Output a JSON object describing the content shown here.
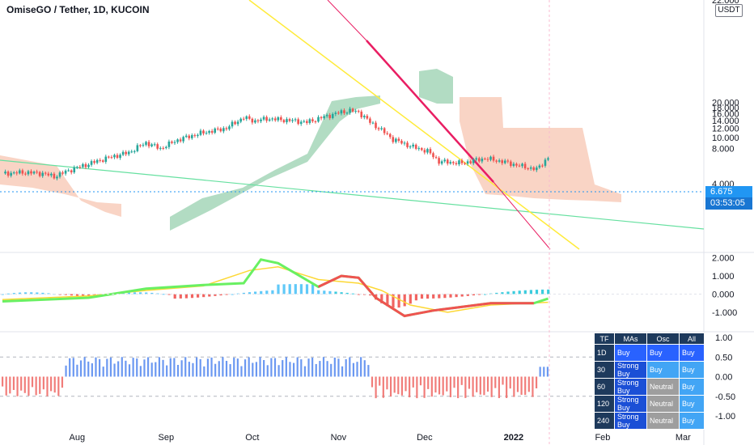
{
  "header": {
    "title": "OmiseGO / Tether, 1D, KUCOIN"
  },
  "price_axis": {
    "unit": "USDT",
    "top_label": "22.000",
    "ticks": [
      "20.000",
      "18.000",
      "16.000",
      "14.000",
      "12.000",
      "10.000",
      "8.000",
      "4.000"
    ],
    "last_price": "6.675",
    "countdown": "03:53:05"
  },
  "osc_axis": {
    "ticks": [
      "2.000",
      "1.000",
      "0.000",
      "-1.000"
    ]
  },
  "third_axis": {
    "ticks": [
      "1.00",
      "0.50",
      "0.00",
      "-0.50",
      "-1.00"
    ]
  },
  "time_axis": {
    "labels": [
      "Aug",
      "Sep",
      "Oct",
      "Nov",
      "Dec",
      "2022",
      "Feb",
      "Mar"
    ]
  },
  "signal_table": {
    "headers": [
      "TF",
      "MAs",
      "Osc",
      "All"
    ],
    "rows": [
      {
        "tf": "1D",
        "mas": "Buy",
        "osc": "Buy",
        "all": "Buy"
      },
      {
        "tf": "30",
        "mas": "Strong Buy",
        "osc": "Buy",
        "all": "Buy"
      },
      {
        "tf": "60",
        "mas": "Strong Buy",
        "osc": "Neutral",
        "all": "Buy"
      },
      {
        "tf": "120",
        "mas": "Strong Buy",
        "osc": "Neutral",
        "all": "Buy"
      },
      {
        "tf": "240",
        "mas": "Strong Buy",
        "osc": "Neutral",
        "all": "Buy"
      }
    ]
  },
  "colors": {
    "up": "#26a69a",
    "down": "#ef5350",
    "cloud_bull": "#a5d6b8",
    "cloud_bear": "#f7c9b6",
    "yellow_line": "#ffeb3b",
    "magenta_line": "#e91e63",
    "green_line": "#66e0a0",
    "accent": "#2196f3"
  },
  "chart_data": {
    "type": "candlestick",
    "symbol": "OmiseGO / Tether",
    "interval": "1D",
    "exchange": "KUCOIN",
    "x_months": [
      "Aug",
      "Sep",
      "Oct",
      "Nov",
      "Dec",
      "2022",
      "Feb",
      "Mar"
    ],
    "y_range": [
      3.5,
      22.0
    ],
    "last_price": 6.675,
    "close_path_approx": [
      {
        "t": "Jul",
        "v": 5.0
      },
      {
        "t": "Aug",
        "v": 4.9
      },
      {
        "t": "mid-Aug",
        "v": 6.6
      },
      {
        "t": "Sep",
        "v": 9.5
      },
      {
        "t": "mid-Sep",
        "v": 11.0
      },
      {
        "t": "Oct",
        "v": 14.0
      },
      {
        "t": "mid-Oct",
        "v": 14.0
      },
      {
        "t": "Nov",
        "v": 17.0
      },
      {
        "t": "mid-Nov",
        "v": 10.0
      },
      {
        "t": "Dec",
        "v": 6.5
      },
      {
        "t": "mid-Dec",
        "v": 6.7
      },
      {
        "t": "2022",
        "v": 5.8
      },
      {
        "t": "mid-Jan",
        "v": 6.675
      }
    ],
    "oscillator_range": [
      -1.3,
      2.2
    ],
    "third_panel_range": [
      -1.0,
      1.0
    ]
  }
}
